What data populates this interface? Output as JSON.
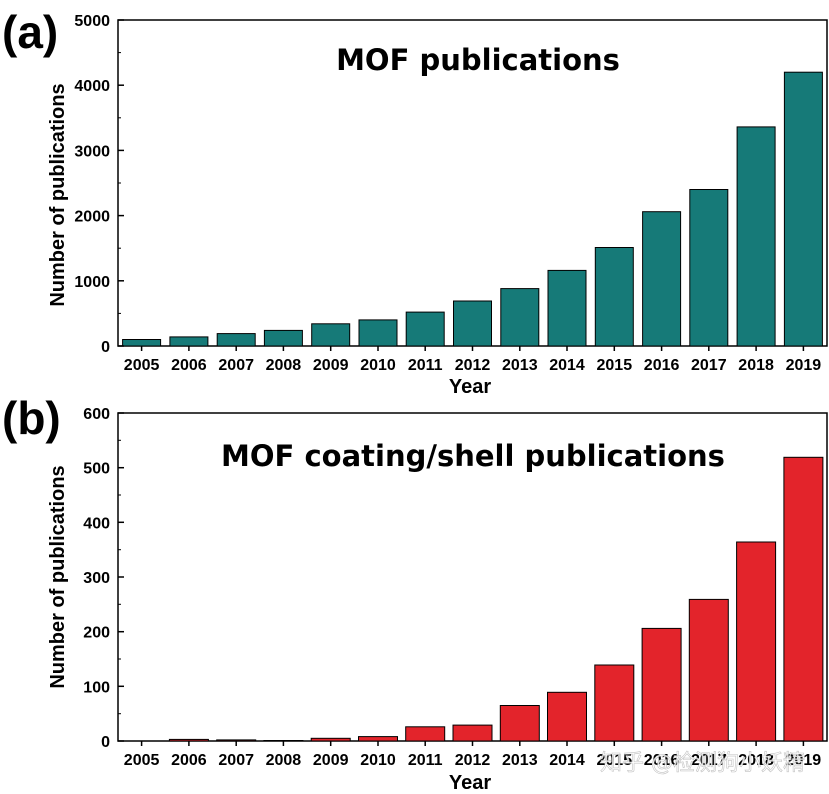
{
  "chart_data": [
    {
      "type": "bar",
      "panel_label": "(a)",
      "title": "MOF publications",
      "xlabel": "Year",
      "ylabel": "Number of publications",
      "categories": [
        "2005",
        "2006",
        "2007",
        "2008",
        "2009",
        "2010",
        "2011",
        "2012",
        "2013",
        "2014",
        "2015",
        "2016",
        "2017",
        "2018",
        "2019"
      ],
      "values": [
        100,
        140,
        190,
        240,
        340,
        400,
        520,
        690,
        880,
        1160,
        1510,
        2060,
        2400,
        3360,
        4200
      ],
      "ylim": [
        0,
        5000
      ],
      "yticks": [
        "0",
        "1000",
        "2000",
        "3000",
        "4000",
        "5000"
      ],
      "bar_color": "#167a78",
      "grid": false
    },
    {
      "type": "bar",
      "panel_label": "(b)",
      "title": "MOF coating/shell publications",
      "xlabel": "Year",
      "ylabel": "Number of publications",
      "categories": [
        "2005",
        "2006",
        "2007",
        "2008",
        "2009",
        "2010",
        "2011",
        "2012",
        "2013",
        "2014",
        "2015",
        "2016",
        "2017",
        "2018",
        "2019"
      ],
      "values": [
        0,
        3,
        2,
        1,
        5,
        8,
        26,
        29,
        65,
        89,
        139,
        206,
        259,
        364,
        519
      ],
      "ylim": [
        0,
        600
      ],
      "yticks": [
        "0",
        "100",
        "200",
        "300",
        "400",
        "500",
        "600"
      ],
      "bar_color": "#e3242b",
      "grid": false
    }
  ],
  "watermark": "知乎 @检测狗小妖精"
}
